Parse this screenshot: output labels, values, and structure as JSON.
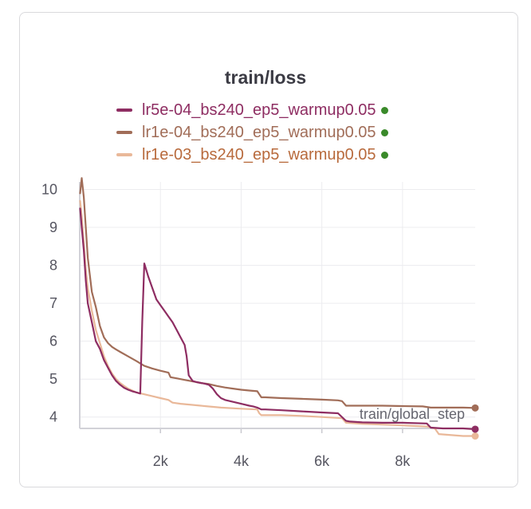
{
  "chart_data": {
    "type": "line",
    "title": "train/loss",
    "xlabel": "train/global_step",
    "ylabel": "",
    "xlim": [
      0,
      9800
    ],
    "ylim": [
      3.7,
      10.2
    ],
    "xticks": [
      2000,
      4000,
      6000,
      8000
    ],
    "xtick_labels": [
      "2k",
      "4k",
      "6k",
      "8k"
    ],
    "yticks": [
      4,
      5,
      6,
      7,
      8,
      9,
      10
    ],
    "grid": true,
    "legend_position": "top",
    "status_dot_color": "#3a8a2a",
    "series": [
      {
        "name": "lr5e-04_bs240_ep5_warmup0.05",
        "color": "#8e2d62",
        "text_color": "#8e2d62",
        "x": [
          10,
          50,
          100,
          150,
          200,
          300,
          400,
          500,
          600,
          700,
          800,
          900,
          1000,
          1100,
          1200,
          1300,
          1400,
          1500,
          1550,
          1600,
          1700,
          1800,
          1900,
          2000,
          2100,
          2200,
          2300,
          2400,
          2500,
          2600,
          2650,
          2700,
          2800,
          2900,
          3000,
          3100,
          3200,
          3300,
          3400,
          3500,
          3600,
          3800,
          4000,
          4200,
          4300,
          4400,
          4500,
          4600,
          5000,
          5500,
          6000,
          6400,
          6600,
          6700,
          7000,
          7500,
          8000,
          8600,
          8700,
          9000,
          9500,
          9800
        ],
        "values": [
          9.5,
          9.0,
          8.4,
          7.6,
          7.0,
          6.5,
          6.0,
          5.8,
          5.5,
          5.3,
          5.1,
          4.95,
          4.85,
          4.77,
          4.72,
          4.68,
          4.65,
          4.62,
          6.5,
          8.05,
          7.7,
          7.4,
          7.1,
          6.95,
          6.8,
          6.65,
          6.5,
          6.3,
          6.1,
          5.9,
          5.6,
          5.1,
          4.95,
          4.92,
          4.9,
          4.88,
          4.85,
          4.75,
          4.6,
          4.5,
          4.45,
          4.4,
          4.35,
          4.3,
          4.28,
          4.25,
          4.2,
          4.2,
          4.18,
          4.15,
          4.12,
          4.1,
          3.9,
          3.88,
          3.86,
          3.85,
          3.85,
          3.83,
          3.72,
          3.7,
          3.7,
          3.68
        ]
      },
      {
        "name": "lr1e-04_bs240_ep5_warmup0.05",
        "color": "#a16d58",
        "text_color": "#a16d58",
        "x": [
          10,
          50,
          100,
          150,
          200,
          300,
          400,
          500,
          600,
          700,
          800,
          900,
          1000,
          1200,
          1400,
          1600,
          1800,
          2000,
          2200,
          2250,
          2400,
          2600,
          2800,
          3000,
          3200,
          3400,
          3600,
          3800,
          4000,
          4200,
          4400,
          4450,
          4500,
          4600,
          5000,
          5500,
          6000,
          6400,
          6500,
          6600,
          7000,
          7500,
          8000,
          8500,
          8700,
          9000,
          9500,
          9800
        ],
        "values": [
          9.9,
          10.3,
          9.8,
          9.0,
          8.2,
          7.3,
          6.9,
          6.4,
          6.1,
          5.95,
          5.85,
          5.78,
          5.72,
          5.6,
          5.48,
          5.35,
          5.28,
          5.22,
          5.17,
          5.05,
          5.02,
          4.98,
          4.94,
          4.9,
          4.87,
          4.82,
          4.78,
          4.75,
          4.72,
          4.7,
          4.68,
          4.6,
          4.52,
          4.52,
          4.5,
          4.48,
          4.46,
          4.44,
          4.42,
          4.3,
          4.3,
          4.3,
          4.29,
          4.28,
          4.25,
          4.25,
          4.25,
          4.24
        ]
      },
      {
        "name": "lr1e-03_bs240_ep5_warmup0.05",
        "color": "#e9b899",
        "text_color": "#b86a3c",
        "x": [
          10,
          50,
          100,
          150,
          200,
          300,
          400,
          500,
          600,
          700,
          800,
          900,
          1000,
          1100,
          1200,
          1400,
          1600,
          1800,
          2000,
          2200,
          2300,
          2500,
          3000,
          3500,
          4000,
          4400,
          4450,
          4500,
          5000,
          5500,
          6000,
          6500,
          6600,
          7000,
          7500,
          8000,
          8600,
          8800,
          8900,
          9500,
          9800
        ],
        "values": [
          9.7,
          9.3,
          8.6,
          7.9,
          7.4,
          6.8,
          6.3,
          5.95,
          5.6,
          5.35,
          5.15,
          5.0,
          4.9,
          4.82,
          4.75,
          4.65,
          4.6,
          4.55,
          4.5,
          4.45,
          4.38,
          4.35,
          4.3,
          4.25,
          4.22,
          4.2,
          4.1,
          4.05,
          4.05,
          4.03,
          4.0,
          3.97,
          3.85,
          3.82,
          3.8,
          3.78,
          3.75,
          3.7,
          3.55,
          3.5,
          3.5
        ]
      }
    ]
  }
}
